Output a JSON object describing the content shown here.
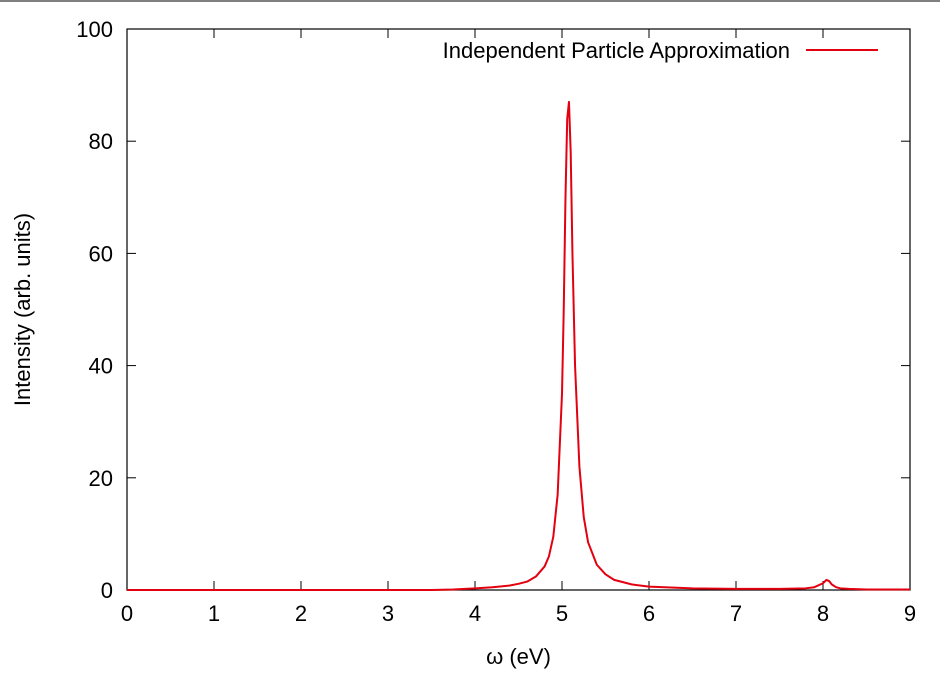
{
  "chart_data": {
    "type": "line",
    "xlabel": "ω (eV)",
    "ylabel": "Intensity (arb. units)",
    "xlim": [
      0,
      9
    ],
    "ylim": [
      0,
      100
    ],
    "xticks": [
      0,
      1,
      2,
      3,
      4,
      5,
      6,
      7,
      8,
      9
    ],
    "yticks": [
      0,
      20,
      40,
      60,
      80,
      100
    ],
    "grid": false,
    "legend_position": "top-right",
    "series": [
      {
        "name": "Independent Particle Approximation",
        "color": "#e3000f",
        "x": [
          0.0,
          0.5,
          1.0,
          1.5,
          2.0,
          2.5,
          3.0,
          3.5,
          3.75,
          4.0,
          4.2,
          4.4,
          4.5,
          4.6,
          4.7,
          4.8,
          4.85,
          4.9,
          4.95,
          5.0,
          5.02,
          5.04,
          5.06,
          5.08,
          5.1,
          5.12,
          5.15,
          5.2,
          5.25,
          5.3,
          5.4,
          5.5,
          5.6,
          5.8,
          6.0,
          6.5,
          7.0,
          7.5,
          7.8,
          7.9,
          8.0,
          8.04,
          8.07,
          8.1,
          8.15,
          8.2,
          8.3,
          8.5,
          8.8,
          9.0
        ],
        "values": [
          0.0,
          0.0,
          0.0,
          0.0,
          0.0,
          0.0,
          0.0,
          0.0,
          0.1,
          0.3,
          0.5,
          0.8,
          1.1,
          1.5,
          2.4,
          4.2,
          6.0,
          9.5,
          17.0,
          35.0,
          50.0,
          70.0,
          84.0,
          87.0,
          78.0,
          60.0,
          40.0,
          22.0,
          13.0,
          8.5,
          4.5,
          2.8,
          1.8,
          1.0,
          0.6,
          0.3,
          0.2,
          0.2,
          0.3,
          0.5,
          1.2,
          1.8,
          1.6,
          1.0,
          0.5,
          0.3,
          0.2,
          0.1,
          0.1,
          0.1
        ]
      }
    ]
  }
}
